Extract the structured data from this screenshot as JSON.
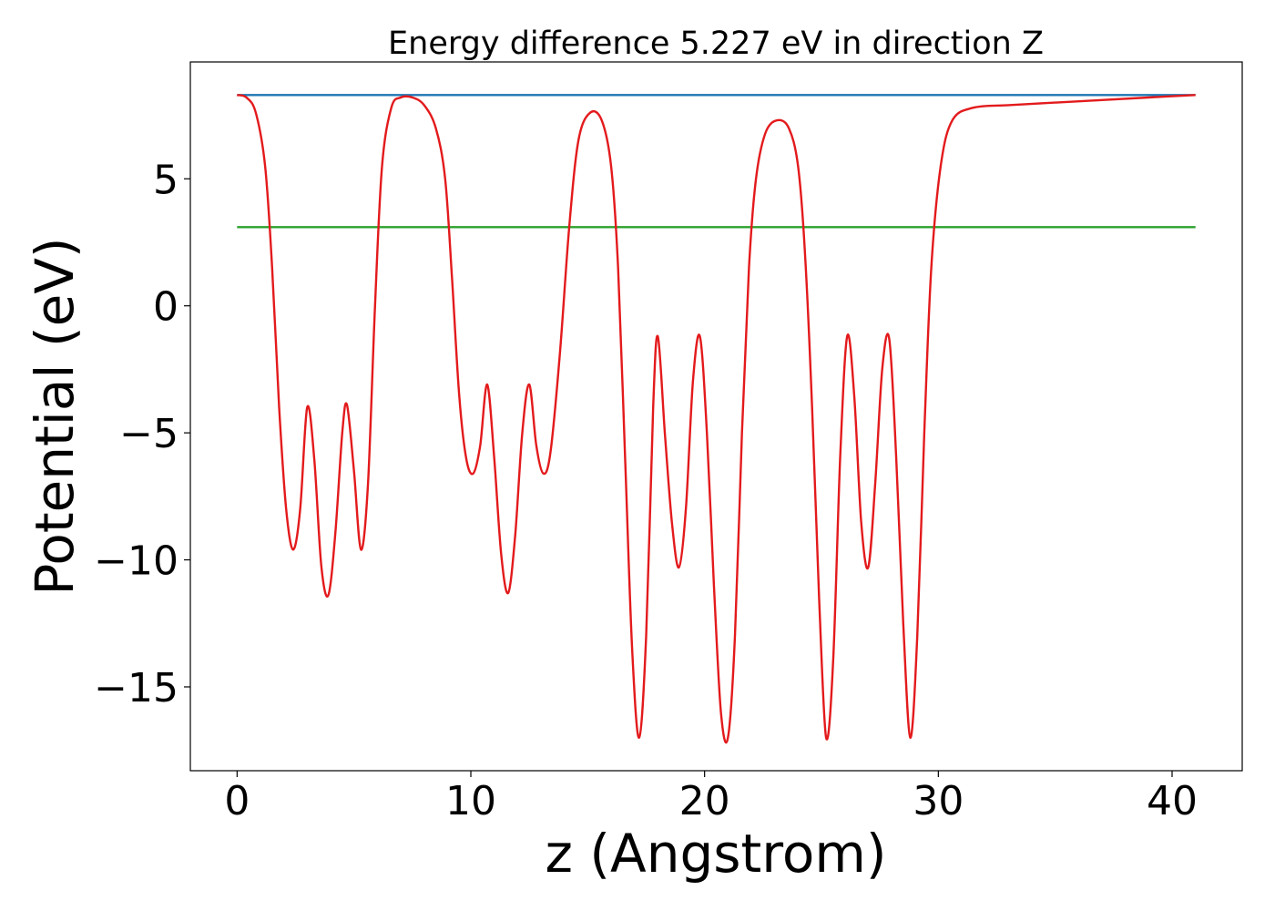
{
  "chart_data": {
    "type": "line",
    "title": "Energy difference 5.227 eV in direction Z",
    "xlabel": "z (Angstrom)",
    "ylabel": "Potential (eV)",
    "xlim": [
      -2,
      43
    ],
    "ylim": [
      -18.3,
      9.6
    ],
    "xticks": [
      0,
      10,
      20,
      30,
      40
    ],
    "yticks": [
      5,
      0,
      -5,
      -10,
      -15
    ],
    "xtick_labels": [
      "0",
      "10",
      "20",
      "30",
      "40"
    ],
    "ytick_labels": [
      "5",
      "0",
      "−5",
      "−10",
      "−15"
    ],
    "grid": false,
    "series": [
      {
        "color": "#1f77b4",
        "kind": "hline",
        "x": [
          0,
          41
        ],
        "y": [
          8.3,
          8.3
        ]
      },
      {
        "color": "#2ca02c",
        "kind": "hline",
        "x": [
          0,
          41
        ],
        "y": [
          3.1,
          3.1
        ]
      },
      {
        "color": "#e31a1c",
        "kind": "profile",
        "x": [
          0,
          0.4,
          0.8,
          1.2,
          1.5,
          1.8,
          2.1,
          2.4,
          2.7,
          3.0,
          3.3,
          3.6,
          3.9,
          4.2,
          4.5,
          4.7,
          5.0,
          5.3,
          5.6,
          5.9,
          6.2,
          6.6,
          7.0,
          7.5,
          8.0,
          8.5,
          8.9,
          9.2,
          9.5,
          9.8,
          10.1,
          10.4,
          10.7,
          11.0,
          11.3,
          11.6,
          11.9,
          12.2,
          12.5,
          12.8,
          13.1,
          13.4,
          13.8,
          14.2,
          14.6,
          15.1,
          15.6,
          16.0,
          16.3,
          16.6,
          16.9,
          17.2,
          17.5,
          17.8,
          18.0,
          18.3,
          18.6,
          18.9,
          19.2,
          19.5,
          19.8,
          20.1,
          20.4,
          20.7,
          21.0,
          21.3,
          21.6,
          21.9,
          22.2,
          22.6,
          23.1,
          23.6,
          24.0,
          24.3,
          24.6,
          24.9,
          25.2,
          25.5,
          25.8,
          26.1,
          26.4,
          26.7,
          27.0,
          27.3,
          27.6,
          27.9,
          28.2,
          28.5,
          28.8,
          29.1,
          29.4,
          29.7,
          30.1,
          30.6,
          31.5,
          33,
          35,
          37,
          39,
          41
        ],
        "y": [
          8.3,
          8.2,
          7.6,
          5.5,
          1.5,
          -4.0,
          -8.0,
          -9.6,
          -8.0,
          -4.0,
          -6.0,
          -10.2,
          -11.4,
          -9.0,
          -5.0,
          -3.9,
          -6.5,
          -9.6,
          -7.0,
          0.0,
          5.5,
          7.8,
          8.2,
          8.2,
          7.9,
          7.0,
          5.0,
          1.0,
          -3.5,
          -6.0,
          -6.6,
          -5.5,
          -3.1,
          -6.0,
          -9.8,
          -11.3,
          -9.0,
          -5.0,
          -3.1,
          -5.5,
          -6.6,
          -5.8,
          -2.0,
          3.0,
          6.5,
          7.6,
          7.3,
          5.5,
          1.5,
          -6.0,
          -13.5,
          -17.0,
          -13.0,
          -4.0,
          -1.2,
          -5.0,
          -8.5,
          -10.3,
          -8.0,
          -3.0,
          -1.2,
          -5.0,
          -11.0,
          -16.0,
          -17.0,
          -13.0,
          -5.0,
          1.5,
          5.0,
          6.8,
          7.3,
          7.0,
          5.5,
          2.0,
          -4.0,
          -11.5,
          -17.0,
          -14.0,
          -6.0,
          -1.2,
          -3.5,
          -8.5,
          -10.3,
          -7.0,
          -2.5,
          -1.3,
          -6.0,
          -12.5,
          -17.0,
          -13.0,
          -5.0,
          1.5,
          5.5,
          7.3,
          7.8,
          7.9,
          8.0,
          8.1,
          8.2,
          8.3
        ]
      }
    ]
  }
}
